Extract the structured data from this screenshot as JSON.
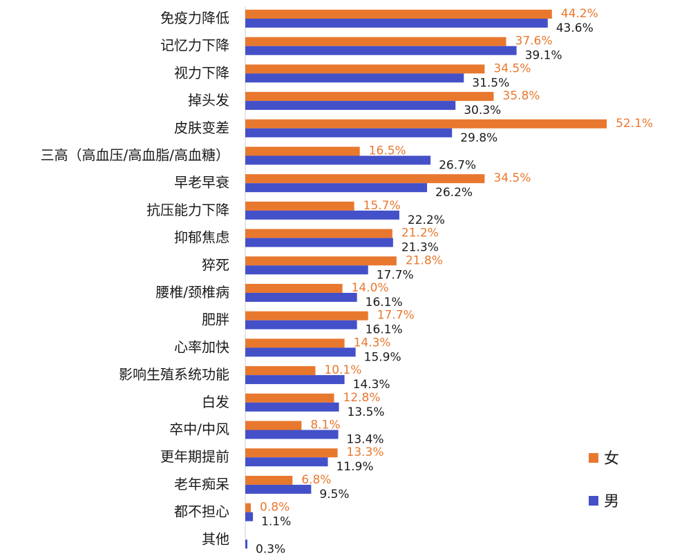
{
  "chart_data": {
    "type": "bar",
    "orientation": "horizontal",
    "categories": [
      "免疫力降低",
      "记忆力下降",
      "视力下降",
      "掉头发",
      "皮肤变差",
      "三高（高血压/高血脂/高血糖）",
      "早老早衰",
      "抗压能力下降",
      "抑郁焦虑",
      "猝死",
      "腰椎/颈椎病",
      "肥胖",
      "心率加快",
      "影响生殖系统功能",
      "白发",
      "卒中/中风",
      "更年期提前",
      "老年痴呆",
      "都不担心",
      "其他"
    ],
    "series": [
      {
        "name": "女",
        "color": "#E8782E",
        "label_color": "#E8782E",
        "values": [
          44.2,
          37.6,
          34.5,
          35.8,
          52.1,
          16.5,
          34.5,
          15.7,
          21.2,
          21.8,
          14.0,
          17.7,
          14.3,
          10.1,
          12.8,
          8.1,
          13.3,
          6.8,
          0.8,
          null
        ],
        "labels": [
          "44.2%",
          "37.6%",
          "34.5%",
          "35.8%",
          "52.1%",
          "16.5%",
          "34.5%",
          "15.7%",
          "21.2%",
          "21.8%",
          "14.0%",
          "17.7%",
          "14.3%",
          "10.1%",
          "12.8%",
          "8.1%",
          "13.3%",
          "6.8%",
          "0.8%",
          ""
        ]
      },
      {
        "name": "男",
        "color": "#4450C8",
        "label_color": "#1a1a1a",
        "values": [
          43.6,
          39.1,
          31.5,
          30.3,
          29.8,
          26.7,
          26.2,
          22.2,
          21.3,
          17.7,
          16.1,
          16.1,
          15.9,
          14.3,
          13.5,
          13.4,
          11.9,
          9.5,
          1.1,
          0.3
        ],
        "labels": [
          "43.6%",
          "39.1%",
          "31.5%",
          "30.3%",
          "29.8%",
          "26.7%",
          "26.2%",
          "22.2%",
          "21.3%",
          "17.7%",
          "16.1%",
          "16.1%",
          "15.9%",
          "14.3%",
          "13.5%",
          "13.4%",
          "11.9%",
          "9.5%",
          "1.1%",
          "0.3%"
        ]
      }
    ],
    "legend": {
      "position": "right",
      "items": [
        "女",
        "男"
      ]
    },
    "xlim": [
      0,
      55
    ],
    "grid": false
  }
}
